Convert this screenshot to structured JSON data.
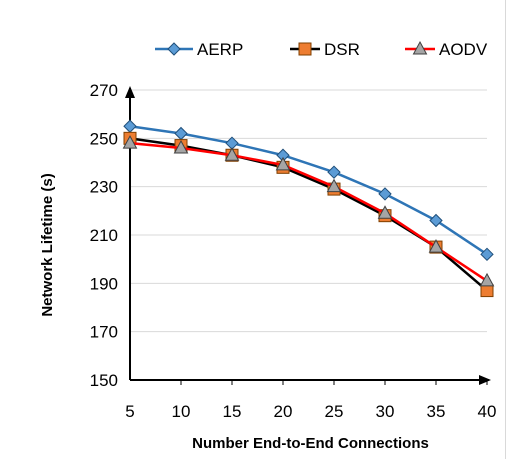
{
  "chart_data": {
    "type": "line",
    "title": "",
    "xlabel": "Number End-to-End Connections",
    "ylabel": "Network Lifetime  (s)",
    "x": [
      5,
      10,
      15,
      20,
      25,
      30,
      35,
      40
    ],
    "ylim": [
      150,
      270
    ],
    "yticks": [
      150,
      170,
      190,
      210,
      230,
      250,
      270
    ],
    "grid": true,
    "legend_position": "top",
    "series": [
      {
        "name": "AERP",
        "color": "#2e75b6",
        "marker": "diamond",
        "values": [
          255,
          252,
          248,
          243,
          236,
          227,
          216,
          202
        ]
      },
      {
        "name": "DSR",
        "color": "#000000",
        "marker": "square",
        "marker_color": "#ed7d31",
        "values": [
          250,
          247,
          243,
          238,
          229,
          218,
          205,
          187
        ]
      },
      {
        "name": "AODV",
        "color": "#ff0000",
        "marker": "triangle",
        "marker_color": "#a5a5a5",
        "values": [
          248,
          246,
          243,
          239,
          230,
          219,
          205,
          191
        ]
      }
    ]
  }
}
